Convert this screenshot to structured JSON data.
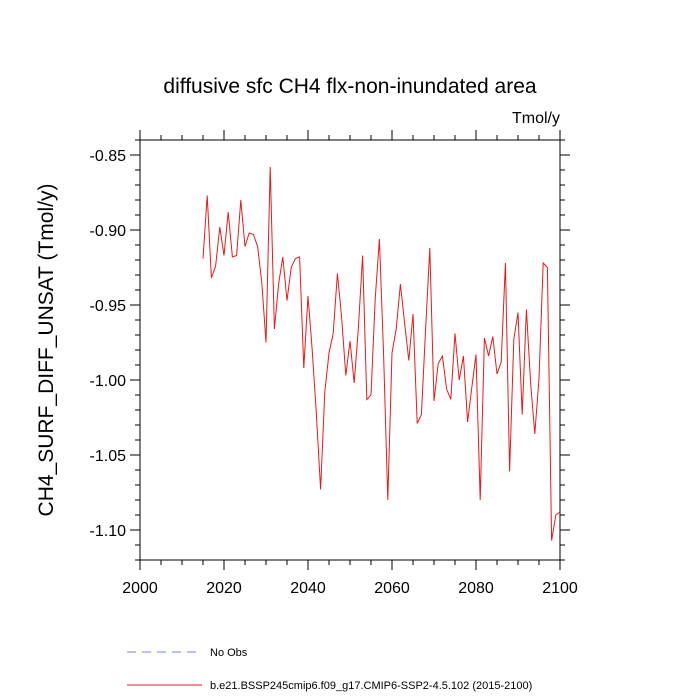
{
  "chart_data": {
    "type": "line",
    "title": "diffusive sfc CH4 flx-non-inundated area",
    "units": "Tmol/y",
    "ylabel": "CH4_SURF_DIFF_UNSAT  (Tmol/y)",
    "xlabel": "",
    "xlim": [
      2000,
      2100
    ],
    "ylim": [
      -1.12,
      -0.84
    ],
    "xticks": [
      2000,
      2020,
      2040,
      2060,
      2080,
      2100
    ],
    "yticks": [
      -0.85,
      -0.9,
      -0.95,
      -1.0,
      -1.05,
      -1.1
    ],
    "ytick_labels": [
      "-0.85",
      "-0.90",
      "-0.95",
      "-1.00",
      "-1.05",
      "-1.10"
    ],
    "grid": false,
    "colors": {
      "model": "#e8191c",
      "obs": "#7d7dff"
    },
    "legend": [
      {
        "label": "No Obs",
        "style": "dashed",
        "color": "#7d7dff"
      },
      {
        "label": "b.e21.BSSP245cmip6.f09_g17.CMIP6-SSP2-4.5.102 (2015-2100)",
        "style": "solid",
        "color": "#e8191c"
      }
    ],
    "series": [
      {
        "name": "b.e21.BSSP245cmip6.f09_g17.CMIP6-SSP2-4.5.102 (2015-2100)",
        "x": [
          2015,
          2016,
          2017,
          2018,
          2019,
          2020,
          2021,
          2022,
          2023,
          2024,
          2025,
          2026,
          2027,
          2028,
          2029,
          2030,
          2031,
          2032,
          2033,
          2034,
          2035,
          2036,
          2037,
          2038,
          2039,
          2040,
          2041,
          2042,
          2043,
          2044,
          2045,
          2046,
          2047,
          2048,
          2049,
          2050,
          2051,
          2052,
          2053,
          2054,
          2055,
          2056,
          2057,
          2058,
          2059,
          2060,
          2061,
          2062,
          2063,
          2064,
          2065,
          2066,
          2067,
          2068,
          2069,
          2070,
          2071,
          2072,
          2073,
          2074,
          2075,
          2076,
          2077,
          2078,
          2079,
          2080,
          2081,
          2082,
          2083,
          2084,
          2085,
          2086,
          2087,
          2088,
          2089,
          2090,
          2091,
          2092,
          2093,
          2094,
          2095,
          2096,
          2097,
          2098,
          2099,
          2100
        ],
        "values": [
          -0.919,
          -0.877,
          -0.932,
          -0.924,
          -0.898,
          -0.917,
          -0.888,
          -0.918,
          -0.917,
          -0.88,
          -0.911,
          -0.902,
          -0.903,
          -0.911,
          -0.935,
          -0.975,
          -0.858,
          -0.966,
          -0.936,
          -0.918,
          -0.947,
          -0.925,
          -0.919,
          -0.918,
          -0.992,
          -0.944,
          -0.98,
          -1.023,
          -1.073,
          -1.008,
          -0.982,
          -0.969,
          -0.929,
          -0.958,
          -0.997,
          -0.974,
          -1.002,
          -0.965,
          -0.917,
          -1.013,
          -1.01,
          -0.946,
          -0.906,
          -0.983,
          -1.08,
          -0.982,
          -0.966,
          -0.936,
          -0.962,
          -0.987,
          -0.956,
          -1.029,
          -1.023,
          -0.966,
          -0.912,
          -1.014,
          -0.989,
          -0.984,
          -1.006,
          -1.013,
          -0.969,
          -1.0,
          -0.984,
          -1.028,
          -1.005,
          -0.983,
          -1.08,
          -0.972,
          -0.984,
          -0.971,
          -0.996,
          -0.988,
          -0.922,
          -1.061,
          -0.973,
          -0.955,
          -1.023,
          -0.953,
          -1.002,
          -1.036,
          -0.999,
          -0.922,
          -0.925,
          -1.107,
          -1.09,
          -1.088
        ]
      }
    ]
  }
}
